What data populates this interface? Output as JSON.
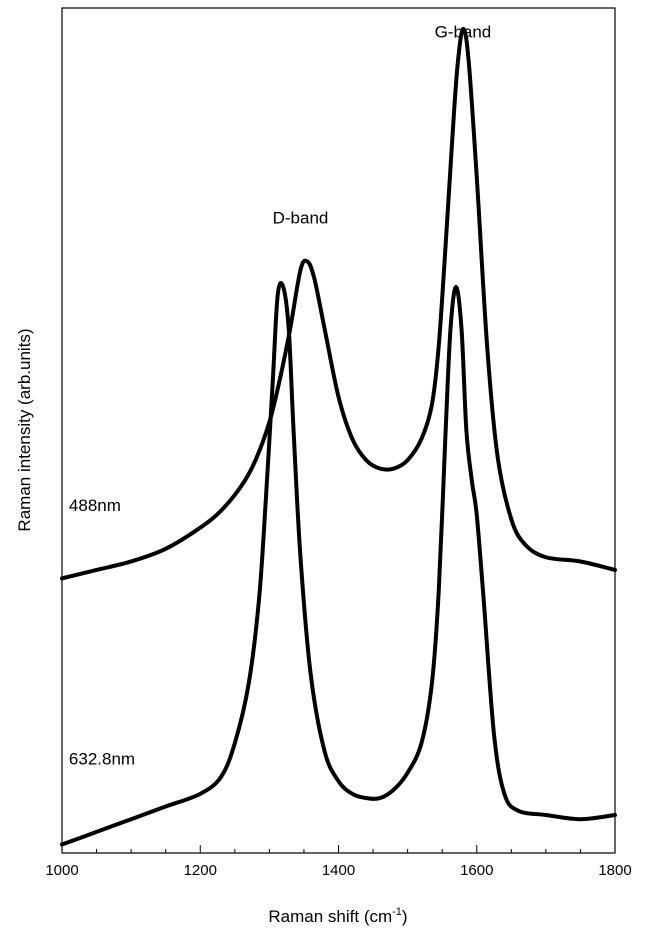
{
  "chart_data": {
    "type": "line",
    "title": "",
    "xlabel": "Raman shift (cm",
    "xlabel_sup": "-1",
    "xlabel_close": ")",
    "ylabel": "Raman intensity (arb.units)",
    "xlim": [
      1000,
      1800
    ],
    "ylim": [
      0,
      1
    ],
    "x_ticks": [
      1000,
      1200,
      1400,
      1600,
      1800
    ],
    "x_minor_step": 50,
    "y_ticks_shown": false,
    "grid": false,
    "annotations": [
      {
        "text": "G-band",
        "x": 1580,
        "y": 0.965
      },
      {
        "text": "D-band",
        "x": 1345,
        "y": 0.745
      },
      {
        "text": "488nm",
        "x": 1010,
        "y": 0.405
      },
      {
        "text": "632.8nm",
        "x": 1010,
        "y": 0.105
      }
    ],
    "series": [
      {
        "name": "488nm",
        "x": [
          1000,
          1050,
          1100,
          1150,
          1200,
          1230,
          1260,
          1280,
          1300,
          1315,
          1330,
          1345,
          1355,
          1365,
          1380,
          1400,
          1420,
          1440,
          1460,
          1480,
          1500,
          1520,
          1535,
          1545,
          1555,
          1565,
          1572,
          1580,
          1588,
          1600,
          1615,
          1630,
          1650,
          1670,
          1700,
          1750,
          1800
        ],
        "y": [
          0.325,
          0.335,
          0.345,
          0.36,
          0.385,
          0.405,
          0.435,
          0.465,
          0.51,
          0.56,
          0.62,
          0.69,
          0.7,
          0.68,
          0.62,
          0.54,
          0.49,
          0.465,
          0.455,
          0.455,
          0.465,
          0.49,
          0.53,
          0.6,
          0.72,
          0.85,
          0.93,
          0.975,
          0.94,
          0.8,
          0.6,
          0.47,
          0.395,
          0.365,
          0.35,
          0.345,
          0.335
        ]
      },
      {
        "name": "632.8nm",
        "x": [
          1000,
          1050,
          1100,
          1150,
          1200,
          1230,
          1250,
          1270,
          1285,
          1295,
          1305,
          1312,
          1320,
          1328,
          1335,
          1345,
          1360,
          1380,
          1400,
          1420,
          1440,
          1460,
          1480,
          1500,
          1520,
          1535,
          1545,
          1555,
          1562,
          1570,
          1578,
          1585,
          1593,
          1600,
          1610,
          1625,
          1640,
          1660,
          1700,
          1750,
          1800
        ],
        "y": [
          0.01,
          0.025,
          0.04,
          0.055,
          0.07,
          0.09,
          0.13,
          0.2,
          0.3,
          0.42,
          0.56,
          0.66,
          0.67,
          0.62,
          0.5,
          0.35,
          0.21,
          0.12,
          0.085,
          0.07,
          0.065,
          0.065,
          0.075,
          0.095,
          0.13,
          0.2,
          0.31,
          0.5,
          0.62,
          0.67,
          0.62,
          0.5,
          0.44,
          0.4,
          0.3,
          0.14,
          0.07,
          0.05,
          0.045,
          0.04,
          0.045
        ]
      }
    ]
  }
}
